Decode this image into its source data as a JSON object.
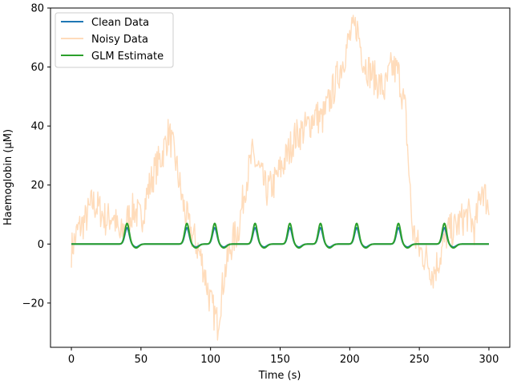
{
  "chart_data": {
    "type": "line",
    "title": "",
    "xlabel": "Time (s)",
    "ylabel": "Haemoglobin (μM)",
    "xlim": [
      -15,
      315
    ],
    "ylim": [
      -35,
      80
    ],
    "xticks": [
      0,
      50,
      100,
      150,
      200,
      250,
      300
    ],
    "yticks": [
      -20,
      0,
      20,
      40,
      60,
      80
    ],
    "xtick_labels": [
      "0",
      "50",
      "100",
      "150",
      "200",
      "250",
      "300"
    ],
    "ytick_labels": [
      "−20",
      "0",
      "20",
      "40",
      "60",
      "80"
    ],
    "grid": false,
    "legend_position": "upper-left",
    "event_onsets": [
      34,
      77,
      97,
      126,
      151,
      173,
      199,
      229,
      262
    ],
    "series": [
      {
        "name": "Clean Data",
        "color": "#1f77b4",
        "peak_amplitude": 5.5,
        "undershoot_amplitude": -1.0
      },
      {
        "name": "Noisy Data",
        "color": "#ffdcbb",
        "x": [
          0,
          5,
          10,
          15,
          20,
          25,
          30,
          35,
          40,
          45,
          50,
          55,
          60,
          65,
          70,
          75,
          80,
          85,
          90,
          95,
          100,
          105,
          110,
          115,
          120,
          125,
          130,
          135,
          140,
          145,
          150,
          155,
          160,
          165,
          170,
          175,
          180,
          185,
          190,
          195,
          200,
          205,
          210,
          215,
          220,
          225,
          230,
          235,
          240,
          245,
          250,
          255,
          260,
          265,
          270,
          275,
          280,
          285,
          290,
          295,
          300
        ],
        "values": [
          -2,
          5,
          8,
          14,
          12,
          8,
          10,
          2,
          8,
          12,
          8,
          18,
          25,
          30,
          38,
          28,
          14,
          5,
          0,
          -8,
          -20,
          -27,
          -10,
          0,
          5,
          20,
          30,
          25,
          18,
          20,
          25,
          30,
          36,
          38,
          40,
          44,
          42,
          48,
          55,
          62,
          70,
          74,
          62,
          58,
          55,
          52,
          60,
          58,
          45,
          5,
          -2,
          -5,
          -10,
          -4,
          4,
          5,
          8,
          10,
          5,
          20,
          12
        ]
      },
      {
        "name": "GLM Estimate",
        "color": "#2ca02c",
        "peak_amplitude": 7.0,
        "undershoot_amplitude": -1.3
      }
    ]
  }
}
